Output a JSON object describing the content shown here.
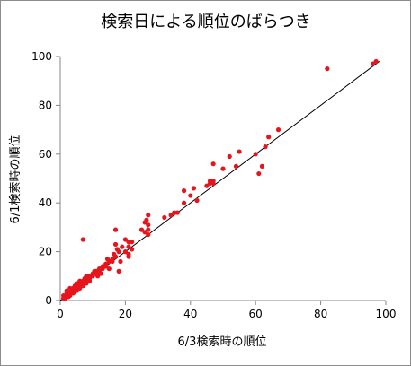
{
  "chart_data": {
    "type": "scatter",
    "title": "検索日による順位のばらつき",
    "xlabel": "6/3検索時の順位",
    "ylabel": "6/1検索時の順位",
    "xlim": [
      0,
      100
    ],
    "ylim": [
      0,
      100
    ],
    "xticks": [
      "0",
      "20",
      "40",
      "60",
      "80",
      "100"
    ],
    "yticks": [
      "0",
      "20",
      "40",
      "60",
      "80",
      "100"
    ],
    "grid": false,
    "point_color": "#e8141c",
    "line_color": "#000000",
    "trendline": {
      "from": [
        0,
        0
      ],
      "to": [
        98,
        98
      ]
    },
    "points": [
      [
        1,
        1
      ],
      [
        1,
        2
      ],
      [
        1.5,
        1
      ],
      [
        2,
        2
      ],
      [
        2,
        3
      ],
      [
        2,
        4
      ],
      [
        2.5,
        1.5
      ],
      [
        3,
        2
      ],
      [
        3,
        3
      ],
      [
        3,
        5
      ],
      [
        3.5,
        4
      ],
      [
        4,
        3
      ],
      [
        4,
        4
      ],
      [
        4,
        5
      ],
      [
        4.5,
        6
      ],
      [
        5,
        4
      ],
      [
        5,
        5
      ],
      [
        5,
        6
      ],
      [
        5,
        7
      ],
      [
        5.5,
        5
      ],
      [
        6,
        5
      ],
      [
        6,
        6
      ],
      [
        6,
        7
      ],
      [
        6,
        8
      ],
      [
        6.5,
        6
      ],
      [
        7,
        6
      ],
      [
        7,
        7
      ],
      [
        7,
        8
      ],
      [
        7,
        25
      ],
      [
        7.5,
        9
      ],
      [
        8,
        7
      ],
      [
        8,
        8
      ],
      [
        8,
        10
      ],
      [
        8.5,
        9
      ],
      [
        9,
        8
      ],
      [
        9,
        9
      ],
      [
        9,
        10
      ],
      [
        10,
        10
      ],
      [
        10,
        11
      ],
      [
        10.5,
        12
      ],
      [
        11,
        11
      ],
      [
        11,
        12
      ],
      [
        11.5,
        10
      ],
      [
        12,
        12
      ],
      [
        12,
        13
      ],
      [
        12.5,
        11
      ],
      [
        13,
        13
      ],
      [
        13,
        14
      ],
      [
        14,
        14
      ],
      [
        14,
        15
      ],
      [
        14.5,
        17
      ],
      [
        15,
        16
      ],
      [
        15,
        13
      ],
      [
        16,
        16
      ],
      [
        16,
        17
      ],
      [
        16.5,
        19
      ],
      [
        17,
        18
      ],
      [
        17,
        23
      ],
      [
        17,
        29
      ],
      [
        17.5,
        21
      ],
      [
        18,
        20
      ],
      [
        18,
        12
      ],
      [
        18.5,
        16
      ],
      [
        19,
        22
      ],
      [
        20,
        20
      ],
      [
        20,
        25
      ],
      [
        21,
        18
      ],
      [
        21,
        19
      ],
      [
        21,
        22
      ],
      [
        21,
        24
      ],
      [
        22,
        21
      ],
      [
        22,
        24
      ],
      [
        25,
        29
      ],
      [
        26,
        28
      ],
      [
        26,
        32
      ],
      [
        26.5,
        33
      ],
      [
        27,
        27
      ],
      [
        27,
        29
      ],
      [
        27,
        31
      ],
      [
        27,
        35
      ],
      [
        32,
        34
      ],
      [
        34,
        35
      ],
      [
        35,
        36
      ],
      [
        36,
        36
      ],
      [
        38,
        45
      ],
      [
        38,
        40
      ],
      [
        40,
        43
      ],
      [
        41,
        46
      ],
      [
        42,
        41
      ],
      [
        45,
        47
      ],
      [
        46,
        48
      ],
      [
        46,
        49
      ],
      [
        47,
        48
      ],
      [
        47,
        49
      ],
      [
        47,
        56
      ],
      [
        50,
        54
      ],
      [
        52,
        59
      ],
      [
        54,
        55
      ],
      [
        55,
        61
      ],
      [
        60,
        60
      ],
      [
        61,
        52
      ],
      [
        62,
        55
      ],
      [
        63,
        63
      ],
      [
        64,
        67
      ],
      [
        67,
        70
      ],
      [
        82,
        95
      ],
      [
        96,
        97
      ],
      [
        97,
        98
      ]
    ]
  }
}
